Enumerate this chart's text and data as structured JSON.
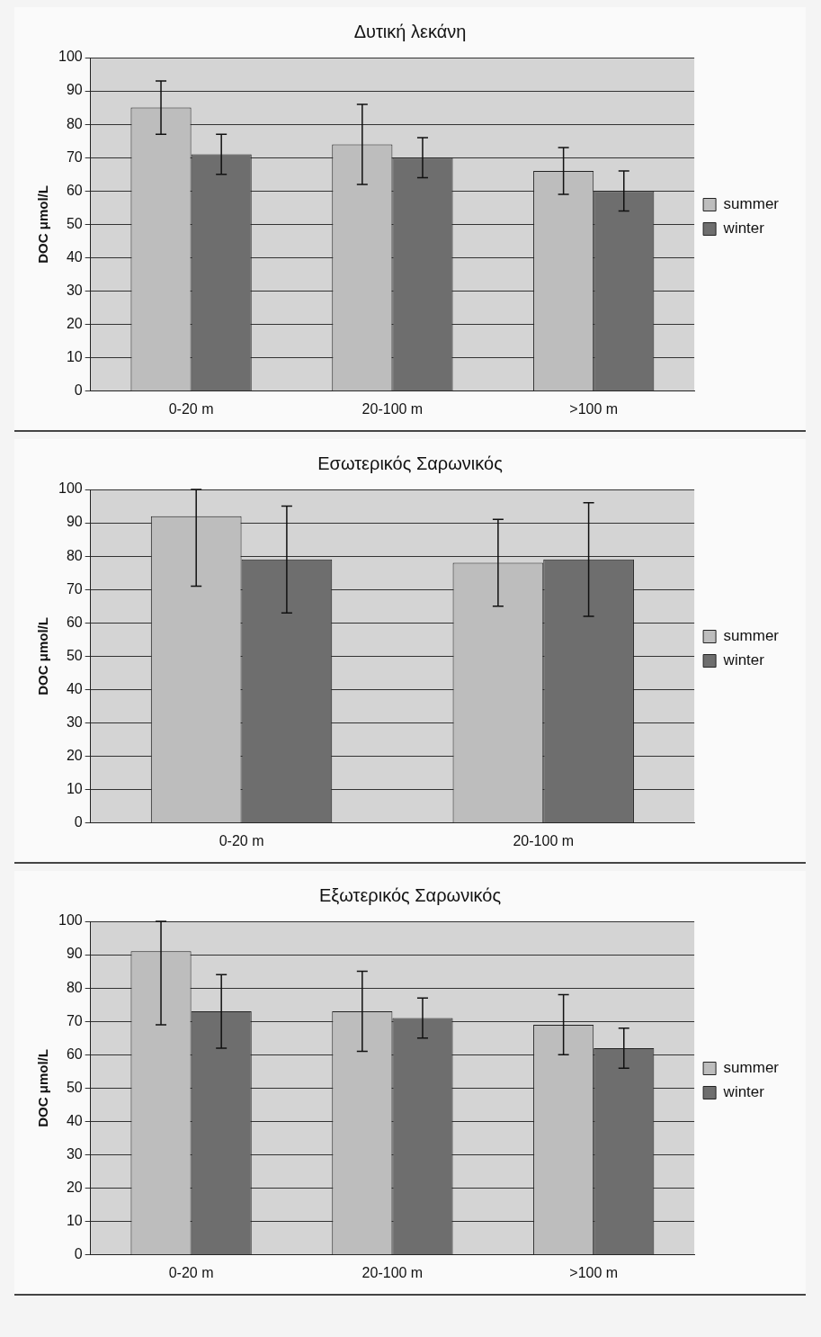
{
  "chart_data": [
    {
      "type": "bar",
      "title": "Δυτική λεκάνη",
      "ylabel": "DOC μmol/L",
      "categories": [
        "0-20 m",
        "20-100 m",
        ">100 m"
      ],
      "series": [
        {
          "name": "summer",
          "color": "#bdbdbd",
          "values": [
            85,
            74,
            66
          ],
          "errors": [
            8,
            12,
            7
          ]
        },
        {
          "name": "winter",
          "color": "#6e6e6e",
          "values": [
            71,
            70,
            60
          ],
          "errors": [
            6,
            6,
            6
          ]
        }
      ],
      "ylim": [
        0,
        100
      ],
      "yticks": [
        0,
        10,
        20,
        30,
        40,
        50,
        60,
        70,
        80,
        90,
        100
      ],
      "grid": "y",
      "legend": "right"
    },
    {
      "type": "bar",
      "title": "Εσωτερικός Σαρωνικός",
      "ylabel": "DOC μmol/L",
      "categories": [
        "0-20 m",
        "20-100 m"
      ],
      "series": [
        {
          "name": "summer",
          "color": "#bdbdbd",
          "values": [
            92,
            78
          ],
          "errors": [
            [
              71,
              100
            ],
            13
          ]
        },
        {
          "name": "winter",
          "color": "#6e6e6e",
          "values": [
            79,
            79
          ],
          "errors": [
            16,
            17
          ]
        }
      ],
      "ylim": [
        0,
        100
      ],
      "yticks": [
        0,
        10,
        20,
        30,
        40,
        50,
        60,
        70,
        80,
        90,
        100
      ],
      "grid": "y",
      "legend": "right"
    },
    {
      "type": "bar",
      "title": "Εξωτερικός Σαρωνικός",
      "ylabel": "DOC μmol/L",
      "categories": [
        "0-20 m",
        "20-100 m",
        ">100 m"
      ],
      "series": [
        {
          "name": "summer",
          "color": "#bdbdbd",
          "values": [
            91,
            73,
            69
          ],
          "errors": [
            [
              69,
              100
            ],
            12,
            9
          ]
        },
        {
          "name": "winter",
          "color": "#6e6e6e",
          "values": [
            73,
            71,
            62
          ],
          "errors": [
            11,
            6,
            6
          ]
        }
      ],
      "ylim": [
        0,
        100
      ],
      "yticks": [
        0,
        10,
        20,
        30,
        40,
        50,
        60,
        70,
        80,
        90,
        100
      ],
      "grid": "y",
      "legend": "right"
    }
  ]
}
